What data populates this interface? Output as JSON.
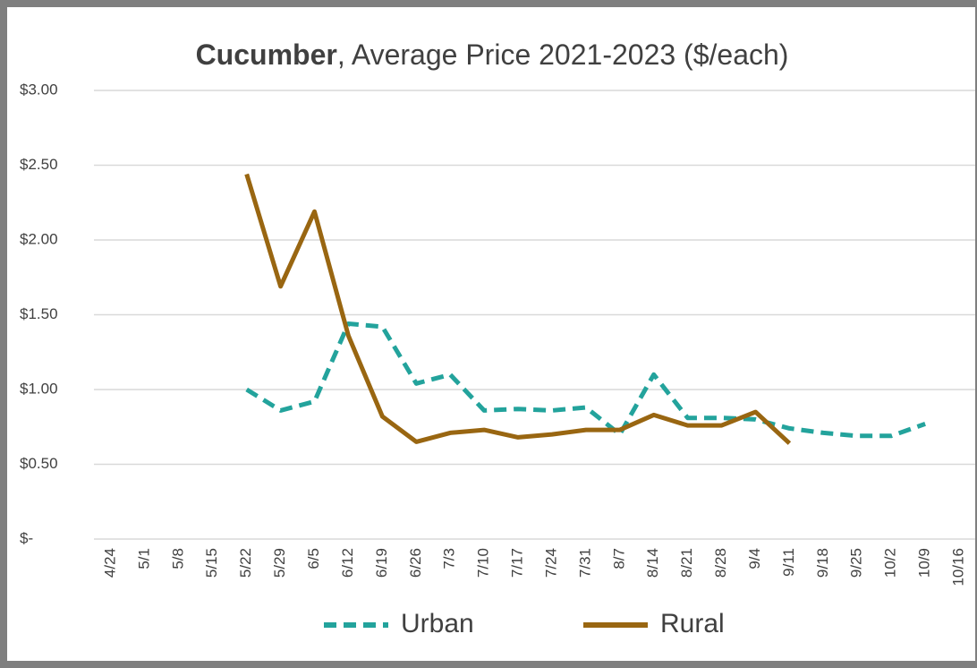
{
  "chart_data": {
    "type": "line",
    "title": [
      "Cucumber",
      ", Average Price 2021-2023 ($/each)"
    ],
    "categories": [
      "4/24",
      "5/1",
      "5/8",
      "5/15",
      "5/22",
      "5/29",
      "6/5",
      "6/12",
      "6/19",
      "6/26",
      "7/3",
      "7/10",
      "7/17",
      "7/24",
      "7/31",
      "8/7",
      "8/14",
      "8/21",
      "8/28",
      "9/4",
      "9/11",
      "9/18",
      "9/25",
      "10/2",
      "10/9",
      "10/16"
    ],
    "series": [
      {
        "name": "Urban",
        "color": "#23a39c",
        "dash": true,
        "values": [
          null,
          null,
          null,
          null,
          1.0,
          0.86,
          0.92,
          1.44,
          1.42,
          1.04,
          1.1,
          0.86,
          0.87,
          0.86,
          0.88,
          0.7,
          1.1,
          0.81,
          0.81,
          0.8,
          0.74,
          0.71,
          0.69,
          0.69,
          0.77,
          null
        ]
      },
      {
        "name": "Rural",
        "color": "#996611",
        "dash": false,
        "values": [
          null,
          null,
          null,
          null,
          2.44,
          1.69,
          2.19,
          1.36,
          0.82,
          0.65,
          0.71,
          0.73,
          0.68,
          0.7,
          0.73,
          0.73,
          0.83,
          0.76,
          0.76,
          0.85,
          0.64,
          null,
          null,
          null,
          null,
          null
        ]
      }
    ],
    "ylim": [
      0,
      3
    ],
    "yticks": [
      {
        "value": 0,
        "label": "$-"
      },
      {
        "value": 0.5,
        "label": "$0.50"
      },
      {
        "value": 1,
        "label": "$1.00"
      },
      {
        "value": 1.5,
        "label": "$1.50"
      },
      {
        "value": 2,
        "label": "$2.00"
      },
      {
        "value": 2.5,
        "label": "$2.50"
      },
      {
        "value": 3,
        "label": "$3.00"
      }
    ],
    "grid": true,
    "legend": "bottom"
  }
}
